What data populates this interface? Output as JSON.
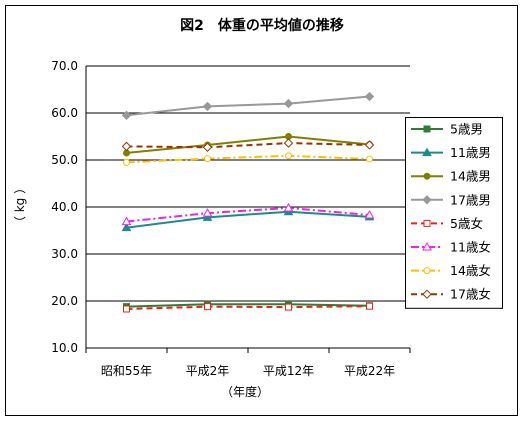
{
  "chart_data": {
    "type": "line",
    "title": "図2　体重の平均値の推移",
    "xlabel": "（年度）",
    "ylabel": "（ kg ）",
    "categories": [
      "昭和55年",
      "平成2年",
      "平成12年",
      "平成22年"
    ],
    "ylim": [
      10.0,
      70.0
    ],
    "yticks": [
      "10.0",
      "20.0",
      "30.0",
      "40.0",
      "50.0",
      "60.0",
      "70.0"
    ],
    "grid": true,
    "legend_position": "right",
    "series": [
      {
        "name": "5歳男",
        "values": [
          18.8,
          19.3,
          19.3,
          19.0
        ],
        "color": "#2e7d32",
        "dash": "solid",
        "marker": "square-filled"
      },
      {
        "name": "11歳男",
        "values": [
          35.6,
          37.8,
          39.0,
          37.9
        ],
        "color": "#1f8a8a",
        "dash": "solid",
        "marker": "triangle-filled"
      },
      {
        "name": "14歳男",
        "values": [
          51.5,
          53.2,
          55.0,
          53.3
        ],
        "color": "#808000",
        "dash": "solid",
        "marker": "circle-filled"
      },
      {
        "name": "17歳男",
        "values": [
          59.5,
          61.4,
          62.0,
          63.5
        ],
        "color": "#999999",
        "dash": "solid",
        "marker": "diamond-filled"
      },
      {
        "name": "5歳女",
        "values": [
          18.3,
          18.8,
          18.7,
          18.9
        ],
        "color": "#e8231a",
        "dash": "dash",
        "marker": "square-open"
      },
      {
        "name": "11歳女",
        "values": [
          36.9,
          38.7,
          39.8,
          38.3
        ],
        "color": "#ee22ee",
        "dash": "dashdot",
        "marker": "triangle-open"
      },
      {
        "name": "14歳女",
        "values": [
          49.5,
          50.3,
          50.9,
          50.2
        ],
        "color": "#ffbf00",
        "dash": "dashdot",
        "marker": "circle-open"
      },
      {
        "name": "17歳女",
        "values": [
          52.9,
          52.7,
          53.6,
          53.2
        ],
        "color": "#993300",
        "dash": "dash",
        "marker": "diamond-open"
      }
    ]
  }
}
